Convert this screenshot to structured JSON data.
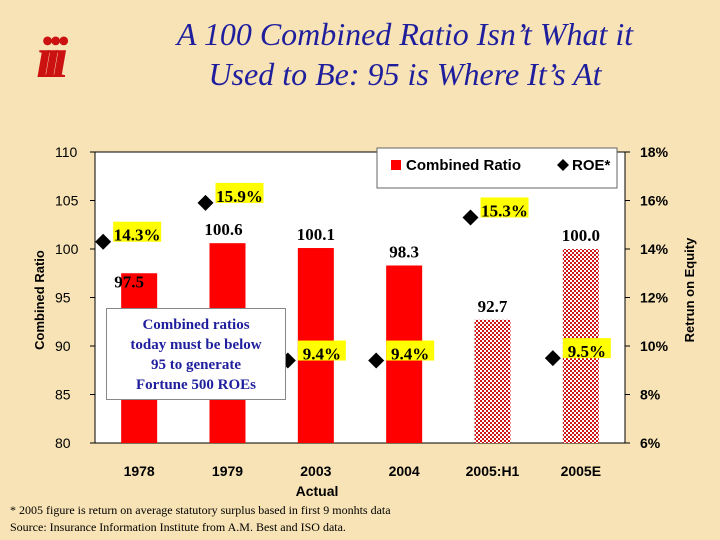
{
  "header": {
    "logo": "iii",
    "title_line1": "A 100 Combined Ratio Isn’t What it",
    "title_line2": "Used to Be: 95 is Where It’s At"
  },
  "annotation": {
    "lines": [
      "Combined ratios",
      "today must be below",
      "95 to generate",
      "Fortune 500 ROEs"
    ]
  },
  "footnotes": {
    "line1": "* 2005 figure is return on average statutory surplus based in first 9 monhts data",
    "line2": "Source: Insurance Information Institute from A.M. Best and ISO data."
  },
  "chart_data": {
    "type": "bar",
    "categories": [
      "1978",
      "1979",
      "2003",
      "2004",
      "2005:H1",
      "2005E"
    ],
    "xlabel": "Actual",
    "ylabel": "Combined Ratio",
    "y2label": "Retrun on Equity",
    "ylim": [
      80,
      110
    ],
    "yticks": [
      80,
      85,
      90,
      95,
      100,
      105,
      110
    ],
    "y2lim": [
      6,
      18
    ],
    "y2ticks": [
      "6%",
      "8%",
      "10%",
      "12%",
      "14%",
      "16%",
      "18%"
    ],
    "grid": false,
    "legend_position": "top-right",
    "series": [
      {
        "name": "Combined Ratio",
        "kind": "bar",
        "values": [
          97.5,
          100.6,
          100.1,
          98.3,
          92.7,
          100.0
        ],
        "labels": [
          "97.5",
          "100.6",
          "100.1",
          "98.3",
          "92.7",
          "100.0"
        ],
        "styles": [
          "solid",
          "solid",
          "solid",
          "solid",
          "hatched",
          "hatched"
        ],
        "color": "#ff0000"
      },
      {
        "name": "ROE*",
        "kind": "marker",
        "values": [
          14.3,
          15.9,
          9.4,
          9.4,
          15.3,
          9.5
        ],
        "labels": [
          "14.3%",
          "15.9%",
          "9.4%",
          "9.4%",
          "15.3%",
          "9.5%"
        ],
        "color": "#000000",
        "label_background": "#ffff00"
      }
    ]
  }
}
